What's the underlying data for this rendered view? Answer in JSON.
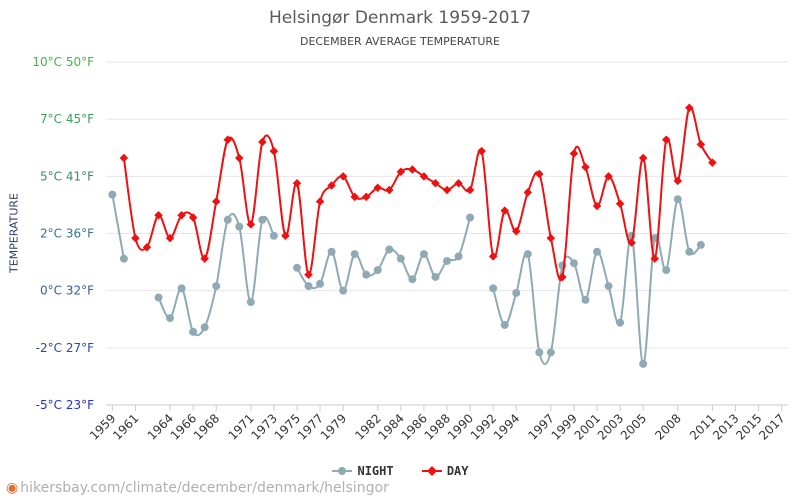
{
  "header": {
    "title": "Helsingør Denmark 1959-2017",
    "subtitle": "DECEMBER AVERAGE TEMPERATURE"
  },
  "footer": {
    "url": "hikersbay.com/climate/december/denmark/helsingor",
    "icon": "location-pin-icon"
  },
  "colors": {
    "day": "#ee1111",
    "night": "#8faab5",
    "grid": "#e6e6e6",
    "yaxis_top": "#45b545",
    "yaxis_bottom": "#2233cc"
  },
  "chart_data": {
    "type": "line",
    "title": "Helsingør Denmark 1959-2017",
    "subtitle": "DECEMBER AVERAGE TEMPERATURE",
    "ylabel": "TEMPERATURE",
    "xlabel": "",
    "ylim": [
      -5,
      10
    ],
    "y_ticks": [
      {
        "value": 10,
        "label": "10°C 50°F"
      },
      {
        "value": 7.5,
        "label": "7°C 45°F"
      },
      {
        "value": 5,
        "label": "5°C 41°F"
      },
      {
        "value": 2.5,
        "label": "2°C 36°F"
      },
      {
        "value": 0,
        "label": "0°C 32°F"
      },
      {
        "value": -2.5,
        "label": "-2°C 27°F"
      },
      {
        "value": -5,
        "label": "-5°C 23°F"
      }
    ],
    "x_tick_labels": [
      "1959",
      "1961",
      "1964",
      "1966",
      "1968",
      "1971",
      "1973",
      "1975",
      "1977",
      "1979",
      "1982",
      "1984",
      "1986",
      "1988",
      "1990",
      "1992",
      "1994",
      "1997",
      "1999",
      "2001",
      "2003",
      "2005",
      "2008",
      "2011",
      "2013",
      "2015",
      "2017"
    ],
    "legend": [
      "NIGHT",
      "DAY"
    ],
    "legend_position": "bottom-center",
    "series": [
      {
        "name": "NIGHT",
        "points": [
          {
            "year": 1959,
            "value": 4.2
          },
          {
            "year": 1960,
            "value": 1.4
          },
          {
            "year": 1963,
            "value": -0.3
          },
          {
            "year": 1964,
            "value": -1.2
          },
          {
            "year": 1965,
            "value": 0.1
          },
          {
            "year": 1966,
            "value": -1.8
          },
          {
            "year": 1967,
            "value": -1.6
          },
          {
            "year": 1968,
            "value": 0.2
          },
          {
            "year": 1969,
            "value": 3.1
          },
          {
            "year": 1970,
            "value": 2.8
          },
          {
            "year": 1971,
            "value": -0.5
          },
          {
            "year": 1972,
            "value": 3.1
          },
          {
            "year": 1973,
            "value": 2.4
          },
          {
            "year": 1975,
            "value": 1.0
          },
          {
            "year": 1976,
            "value": 0.2
          },
          {
            "year": 1977,
            "value": 0.3
          },
          {
            "year": 1978,
            "value": 1.7
          },
          {
            "year": 1979,
            "value": 0.0
          },
          {
            "year": 1980,
            "value": 1.6
          },
          {
            "year": 1981,
            "value": 0.7
          },
          {
            "year": 1982,
            "value": 0.9
          },
          {
            "year": 1983,
            "value": 1.8
          },
          {
            "year": 1984,
            "value": 1.4
          },
          {
            "year": 1985,
            "value": 0.5
          },
          {
            "year": 1986,
            "value": 1.6
          },
          {
            "year": 1987,
            "value": 0.6
          },
          {
            "year": 1988,
            "value": 1.3
          },
          {
            "year": 1989,
            "value": 1.5
          },
          {
            "year": 1990,
            "value": 3.2
          },
          {
            "year": 1992,
            "value": 0.1
          },
          {
            "year": 1993,
            "value": -1.5
          },
          {
            "year": 1994,
            "value": -0.1
          },
          {
            "year": 1995,
            "value": 1.6
          },
          {
            "year": 1996,
            "value": -2.7
          },
          {
            "year": 1997,
            "value": -2.7
          },
          {
            "year": 1998,
            "value": 1.1
          },
          {
            "year": 1999,
            "value": 1.2
          },
          {
            "year": 2000,
            "value": -0.4
          },
          {
            "year": 2001,
            "value": 1.7
          },
          {
            "year": 2002,
            "value": 0.2
          },
          {
            "year": 2003,
            "value": -1.4
          },
          {
            "year": 2004,
            "value": 2.4
          },
          {
            "year": 2005,
            "value": -3.2
          },
          {
            "year": 2006,
            "value": 2.3
          },
          {
            "year": 2007,
            "value": 0.9
          },
          {
            "year": 2008,
            "value": 4.0
          },
          {
            "year": 2009,
            "value": 1.7
          },
          {
            "year": 2010,
            "value": 2.0
          }
        ]
      },
      {
        "name": "DAY",
        "points": [
          {
            "year": 1960,
            "value": 5.8
          },
          {
            "year": 1961,
            "value": 2.3
          },
          {
            "year": 1962,
            "value": 1.9
          },
          {
            "year": 1963,
            "value": 3.3
          },
          {
            "year": 1964,
            "value": 2.3
          },
          {
            "year": 1965,
            "value": 3.3
          },
          {
            "year": 1966,
            "value": 3.2
          },
          {
            "year": 1967,
            "value": 1.4
          },
          {
            "year": 1968,
            "value": 3.9
          },
          {
            "year": 1969,
            "value": 6.6
          },
          {
            "year": 1970,
            "value": 5.8
          },
          {
            "year": 1971,
            "value": 2.9
          },
          {
            "year": 1972,
            "value": 6.5
          },
          {
            "year": 1973,
            "value": 6.1
          },
          {
            "year": 1974,
            "value": 2.4
          },
          {
            "year": 1975,
            "value": 4.7
          },
          {
            "year": 1976,
            "value": 0.7
          },
          {
            "year": 1977,
            "value": 3.9
          },
          {
            "year": 1978,
            "value": 4.6
          },
          {
            "year": 1979,
            "value": 5.0
          },
          {
            "year": 1980,
            "value": 4.1
          },
          {
            "year": 1981,
            "value": 4.1
          },
          {
            "year": 1982,
            "value": 4.5
          },
          {
            "year": 1983,
            "value": 4.4
          },
          {
            "year": 1984,
            "value": 5.2
          },
          {
            "year": 1985,
            "value": 5.3
          },
          {
            "year": 1986,
            "value": 5.0
          },
          {
            "year": 1987,
            "value": 4.7
          },
          {
            "year": 1988,
            "value": 4.4
          },
          {
            "year": 1989,
            "value": 4.7
          },
          {
            "year": 1990,
            "value": 4.4
          },
          {
            "year": 1991,
            "value": 6.1
          },
          {
            "year": 1992,
            "value": 1.5
          },
          {
            "year": 1993,
            "value": 3.5
          },
          {
            "year": 1994,
            "value": 2.6
          },
          {
            "year": 1995,
            "value": 4.3
          },
          {
            "year": 1996,
            "value": 5.1
          },
          {
            "year": 1997,
            "value": 2.3
          },
          {
            "year": 1998,
            "value": 0.6
          },
          {
            "year": 1999,
            "value": 6.0
          },
          {
            "year": 2000,
            "value": 5.4
          },
          {
            "year": 2001,
            "value": 3.7
          },
          {
            "year": 2002,
            "value": 5.0
          },
          {
            "year": 2003,
            "value": 3.8
          },
          {
            "year": 2004,
            "value": 2.1
          },
          {
            "year": 2005,
            "value": 5.8
          },
          {
            "year": 2006,
            "value": 1.4
          },
          {
            "year": 2007,
            "value": 6.6
          },
          {
            "year": 2008,
            "value": 4.8
          },
          {
            "year": 2009,
            "value": 8.0
          },
          {
            "year": 2010,
            "value": 6.4
          },
          {
            "year": 2011,
            "value": 5.6
          }
        ]
      }
    ]
  }
}
